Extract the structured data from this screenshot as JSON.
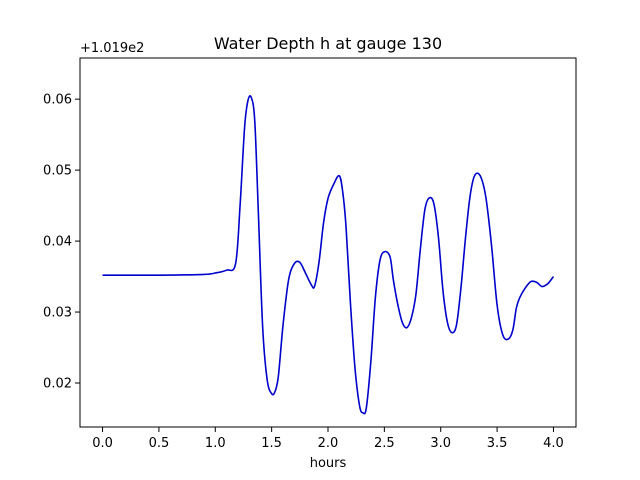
{
  "chart_data": {
    "type": "line",
    "title": "Water Depth h at gauge 130",
    "xlabel": "hours",
    "ylabel": "",
    "y_offset_label": "+1.019e2",
    "xlim": [
      -0.2,
      4.2
    ],
    "ylim": [
      0.0138,
      0.0658
    ],
    "x_ticks": [
      0.0,
      0.5,
      1.0,
      1.5,
      2.0,
      2.5,
      3.0,
      3.5,
      4.0
    ],
    "x_tick_labels": [
      "0.0",
      "0.5",
      "1.0",
      "1.5",
      "2.0",
      "2.5",
      "3.0",
      "3.5",
      "4.0"
    ],
    "y_ticks": [
      0.02,
      0.03,
      0.04,
      0.05,
      0.06
    ],
    "y_tick_labels": [
      "0.02",
      "0.03",
      "0.04",
      "0.05",
      "0.06"
    ],
    "grid": false,
    "series": [
      {
        "color": "#0000cc",
        "x": [
          0.0,
          0.5,
          0.9,
          1.0,
          1.1,
          1.18,
          1.22,
          1.26,
          1.29,
          1.32,
          1.35,
          1.38,
          1.42,
          1.46,
          1.5,
          1.53,
          1.56,
          1.6,
          1.65,
          1.7,
          1.75,
          1.8,
          1.85,
          1.88,
          1.92,
          1.96,
          2.0,
          2.05,
          2.1,
          2.13,
          2.16,
          2.2,
          2.24,
          2.28,
          2.31,
          2.34,
          2.38,
          2.42,
          2.46,
          2.5,
          2.55,
          2.58,
          2.62,
          2.66,
          2.7,
          2.74,
          2.78,
          2.82,
          2.86,
          2.9,
          2.94,
          2.98,
          3.02,
          3.06,
          3.1,
          3.14,
          3.18,
          3.22,
          3.26,
          3.3,
          3.35,
          3.4,
          3.45,
          3.5,
          3.55,
          3.6,
          3.64,
          3.67,
          3.7,
          3.75,
          3.8,
          3.85,
          3.9,
          3.95,
          4.0
        ],
        "y": [
          0.0352,
          0.0352,
          0.0353,
          0.0355,
          0.0359,
          0.0368,
          0.045,
          0.056,
          0.0598,
          0.0602,
          0.057,
          0.045,
          0.028,
          0.0205,
          0.0185,
          0.0188,
          0.021,
          0.028,
          0.0345,
          0.0368,
          0.037,
          0.0355,
          0.0339,
          0.0336,
          0.037,
          0.0425,
          0.046,
          0.048,
          0.0492,
          0.047,
          0.042,
          0.031,
          0.022,
          0.0168,
          0.0158,
          0.0165,
          0.023,
          0.032,
          0.0372,
          0.0385,
          0.0378,
          0.0345,
          0.031,
          0.0285,
          0.0278,
          0.0292,
          0.0325,
          0.039,
          0.0445,
          0.0461,
          0.0452,
          0.0405,
          0.033,
          0.0285,
          0.0271,
          0.0282,
          0.0335,
          0.0405,
          0.0463,
          0.0492,
          0.0492,
          0.0462,
          0.0395,
          0.031,
          0.0268,
          0.0262,
          0.0275,
          0.0305,
          0.032,
          0.0334,
          0.0343,
          0.0342,
          0.0336,
          0.034,
          0.035
        ]
      }
    ]
  }
}
